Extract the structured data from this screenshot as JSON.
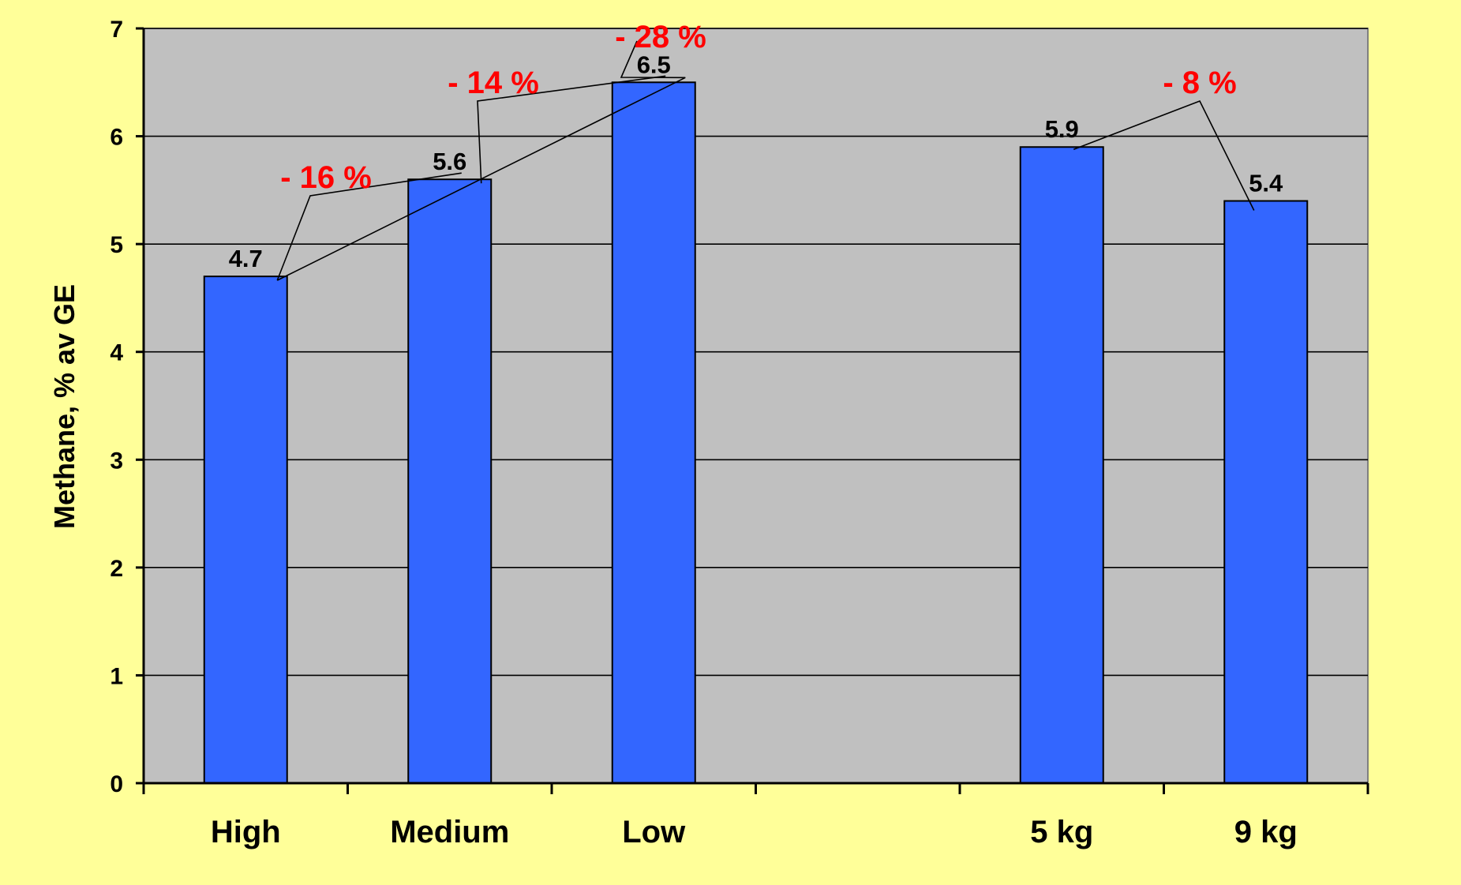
{
  "colors": {
    "background": "#FFFF99",
    "plot_area": "#C0C0C0",
    "bar_fill": "#3366FF",
    "annotation": "#FF0000",
    "axis": "#000000"
  },
  "chart_data": {
    "type": "bar",
    "categories": [
      "High",
      "Medium",
      "Low",
      "",
      "5 kg",
      "9 kg"
    ],
    "values": [
      4.7,
      5.6,
      6.5,
      null,
      5.9,
      5.4
    ],
    "data_labels": [
      "4.7",
      "5.6",
      "6.5",
      "",
      "5.9",
      "5.4"
    ],
    "ylabel": "Methane, % av GE",
    "xlabel": "",
    "ylim": [
      0,
      7
    ],
    "yticks": [
      0,
      1,
      2,
      3,
      4,
      5,
      6,
      7
    ],
    "grid": true,
    "annotations": [
      {
        "text": "- 16 %",
        "from": 0,
        "to": 1
      },
      {
        "text": "- 14 %",
        "from": 1,
        "to": 2
      },
      {
        "text": "- 28 %",
        "from": 0,
        "to": 2
      },
      {
        "text": "- 8 %",
        "from": 4,
        "to": 5
      }
    ]
  }
}
